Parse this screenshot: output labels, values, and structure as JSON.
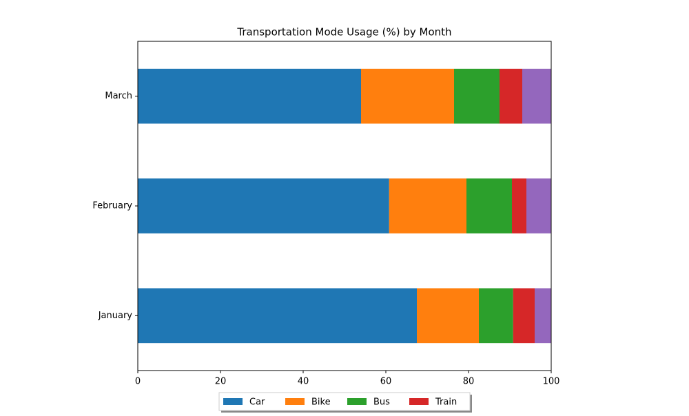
{
  "chart_data": {
    "type": "stacked-barh",
    "title": "Transportation Mode Usage (%) by Month",
    "categories": [
      "January",
      "February",
      "March"
    ],
    "series": [
      {
        "name": "Car",
        "color": "#1f77b4",
        "values": [
          67.5,
          60.8,
          54
        ]
      },
      {
        "name": "Bike",
        "color": "#ff7f0e",
        "values": [
          15,
          18.7,
          22.5
        ]
      },
      {
        "name": "Bus",
        "color": "#2ca02c",
        "values": [
          8.3,
          11,
          11
        ]
      },
      {
        "name": "Train",
        "color": "#d62728",
        "values": [
          5.2,
          3.5,
          5.5
        ]
      },
      {
        "color": "#9467bd",
        "values": [
          4,
          6,
          7
        ]
      }
    ],
    "xlim": [
      0,
      100
    ],
    "xticks": [
      0,
      20,
      40,
      60,
      80,
      100
    ],
    "grid": false,
    "legend": "bottom"
  }
}
